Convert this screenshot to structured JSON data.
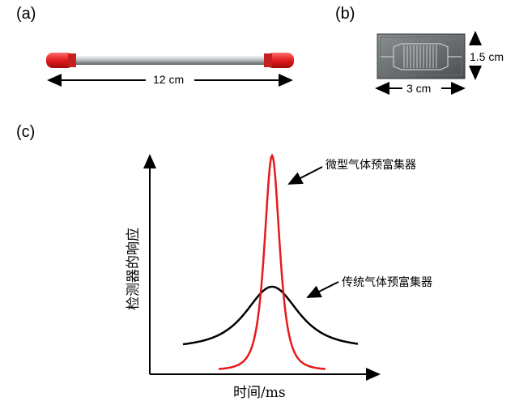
{
  "panels": {
    "a": {
      "label": "(a)",
      "dimension": "12 cm"
    },
    "b": {
      "label": "(b)",
      "width": "3 cm",
      "height": "1.5 cm"
    },
    "c": {
      "label": "(c)"
    }
  },
  "plot": {
    "xlabel": "时间/ms",
    "ylabel": "检测器的响应",
    "callout_micro": "微型气体预富集器",
    "callout_traditional": "传统气体预富集器"
  },
  "colors": {
    "micro_peak": "#e8191b",
    "traditional_peak": "#000000",
    "tube_cap": "#e01e1e",
    "tube_body": "#b8bcc0"
  }
}
